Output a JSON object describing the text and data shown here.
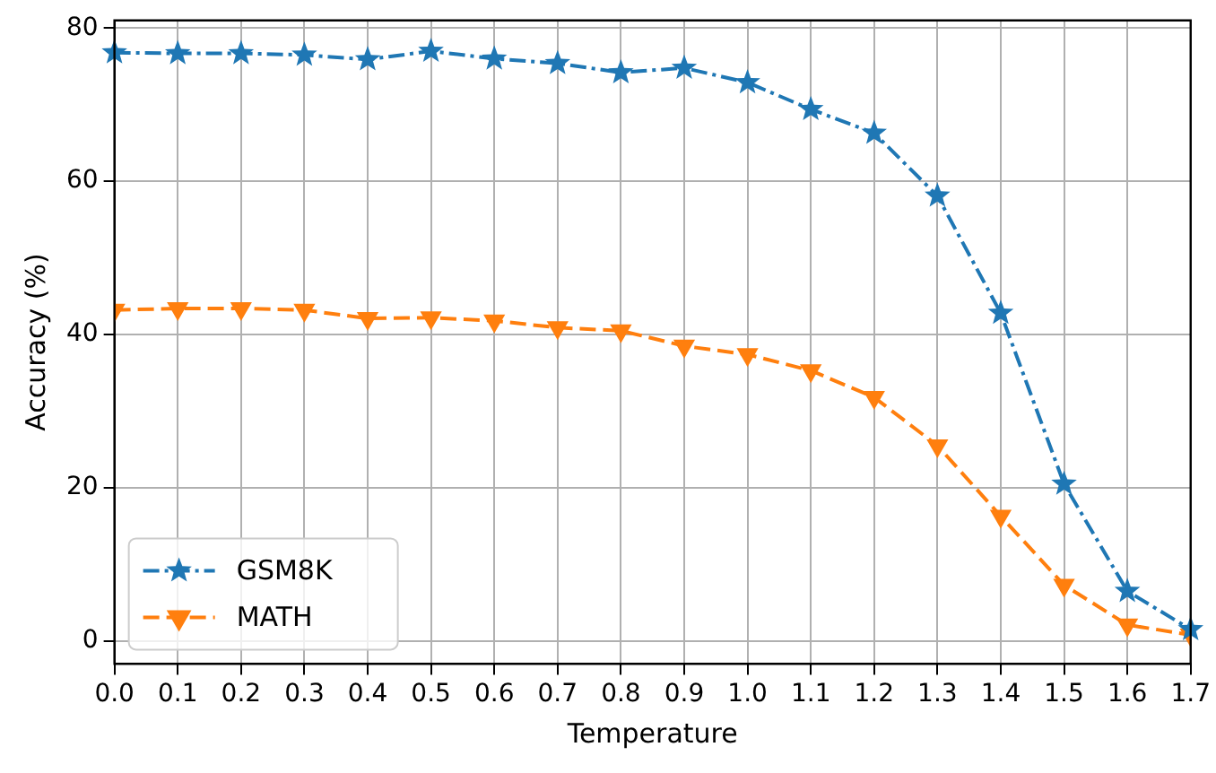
{
  "chart_data": {
    "type": "line",
    "xlabel": "Temperature",
    "ylabel": "Accuracy (%)",
    "x": [
      0.0,
      0.1,
      0.2,
      0.3,
      0.4,
      0.5,
      0.6,
      0.7,
      0.8,
      0.9,
      1.0,
      1.1,
      1.2,
      1.3,
      1.4,
      1.5,
      1.6,
      1.7
    ],
    "series": [
      {
        "name": "GSM8K",
        "color": "#1f77b4",
        "marker": "star",
        "line_style": "dashdot",
        "values": [
          76.8,
          76.7,
          76.7,
          76.5,
          75.9,
          77.0,
          76.0,
          75.4,
          74.2,
          74.8,
          72.9,
          69.4,
          66.3,
          58.1,
          42.8,
          20.5,
          6.5,
          1.5
        ]
      },
      {
        "name": "MATH",
        "color": "#ff7f0e",
        "marker": "triangle-down",
        "line_style": "dashed",
        "values": [
          43.2,
          43.4,
          43.4,
          43.2,
          42.1,
          42.2,
          41.8,
          40.9,
          40.5,
          38.5,
          37.4,
          35.3,
          31.8,
          25.5,
          16.3,
          7.3,
          2.1,
          0.8
        ]
      }
    ],
    "xlim": [
      0,
      1.7
    ],
    "xticks": [
      {
        "value": 0,
        "label": "0.0"
      },
      {
        "value": 0.1,
        "label": "0.1"
      },
      {
        "value": 0.2,
        "label": "0.2"
      },
      {
        "value": 0.3,
        "label": "0.3"
      },
      {
        "value": 0.4,
        "label": "0.4"
      },
      {
        "value": 0.5,
        "label": "0.5"
      },
      {
        "value": 0.6,
        "label": "0.6"
      },
      {
        "value": 0.7,
        "label": "0.7"
      },
      {
        "value": 0.8,
        "label": "0.8"
      },
      {
        "value": 0.9,
        "label": "0.9"
      },
      {
        "value": 1.0,
        "label": "1.0"
      },
      {
        "value": 1.1,
        "label": "1.1"
      },
      {
        "value": 1.2,
        "label": "1.2"
      },
      {
        "value": 1.3,
        "label": "1.3"
      },
      {
        "value": 1.4,
        "label": "1.4"
      },
      {
        "value": 1.5,
        "label": "1.5"
      },
      {
        "value": 1.6,
        "label": "1.6"
      },
      {
        "value": 1.7,
        "label": "1.7"
      }
    ],
    "ylim": [
      -3,
      81
    ],
    "yticks": [
      0,
      20,
      40,
      60,
      80
    ],
    "grid": true,
    "legend": "lower left"
  }
}
